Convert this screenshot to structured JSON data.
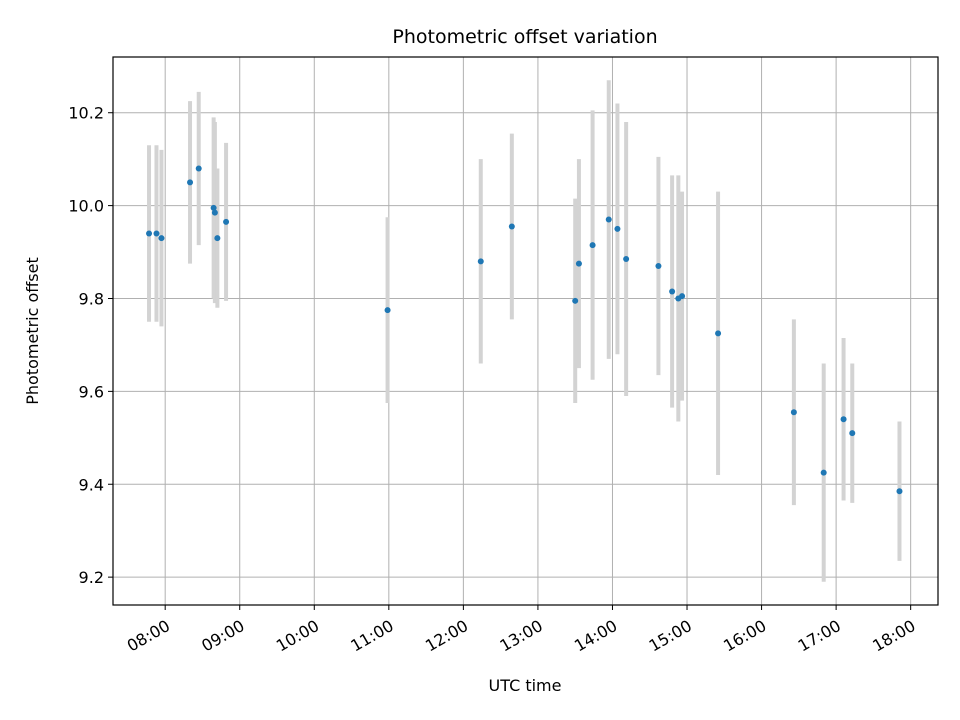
{
  "chart_data": {
    "type": "scatter",
    "title": "Photometric offset variation",
    "xlabel": "UTC time",
    "ylabel": "Photometric offset",
    "x_ticks": [
      "08:00",
      "09:00",
      "10:00",
      "11:00",
      "12:00",
      "13:00",
      "14:00",
      "15:00",
      "16:00",
      "17:00",
      "18:00"
    ],
    "y_ticks": [
      "9.2",
      "9.4",
      "9.6",
      "9.8",
      "10.0",
      "10.2"
    ],
    "x_range": [
      "07:18",
      "18:22"
    ],
    "y_range": [
      9.14,
      10.32
    ],
    "grid": true,
    "colors": {
      "point": "#1f77b4",
      "errorbar": "#d3d3d3",
      "grid": "#b0b0b0"
    },
    "series": [
      {
        "points": [
          {
            "x": "07:47",
            "y": 9.94,
            "err": 0.19
          },
          {
            "x": "07:53",
            "y": 9.94,
            "err": 0.19
          },
          {
            "x": "07:57",
            "y": 9.93,
            "err": 0.19
          },
          {
            "x": "08:20",
            "y": 10.05,
            "err": 0.175
          },
          {
            "x": "08:27",
            "y": 10.08,
            "err": 0.165
          },
          {
            "x": "08:39",
            "y": 9.995,
            "err": 0.195
          },
          {
            "x": "08:40",
            "y": 9.985,
            "err": 0.195
          },
          {
            "x": "08:42",
            "y": 9.93,
            "err": 0.15
          },
          {
            "x": "08:49",
            "y": 9.965,
            "err": 0.17
          },
          {
            "x": "10:59",
            "y": 9.775,
            "err": 0.2
          },
          {
            "x": "12:14",
            "y": 9.88,
            "err": 0.22
          },
          {
            "x": "12:39",
            "y": 9.955,
            "err": 0.2
          },
          {
            "x": "13:30",
            "y": 9.795,
            "err": 0.22
          },
          {
            "x": "13:33",
            "y": 9.875,
            "err": 0.225
          },
          {
            "x": "13:44",
            "y": 9.915,
            "err": 0.29
          },
          {
            "x": "13:57",
            "y": 9.97,
            "err": 0.3
          },
          {
            "x": "14:04",
            "y": 9.95,
            "err": 0.27
          },
          {
            "x": "14:11",
            "y": 9.885,
            "err": 0.295
          },
          {
            "x": "14:37",
            "y": 9.87,
            "err": 0.235
          },
          {
            "x": "14:48",
            "y": 9.815,
            "err": 0.25
          },
          {
            "x": "14:53",
            "y": 9.8,
            "err": 0.265
          },
          {
            "x": "14:56",
            "y": 9.805,
            "err": 0.225
          },
          {
            "x": "15:25",
            "y": 9.725,
            "err": 0.305
          },
          {
            "x": "16:26",
            "y": 9.555,
            "err": 0.2
          },
          {
            "x": "16:50",
            "y": 9.425,
            "err": 0.235
          },
          {
            "x": "17:06",
            "y": 9.54,
            "err": 0.175
          },
          {
            "x": "17:13",
            "y": 9.51,
            "err": 0.15
          },
          {
            "x": "17:51",
            "y": 9.385,
            "err": 0.15
          }
        ]
      }
    ]
  }
}
